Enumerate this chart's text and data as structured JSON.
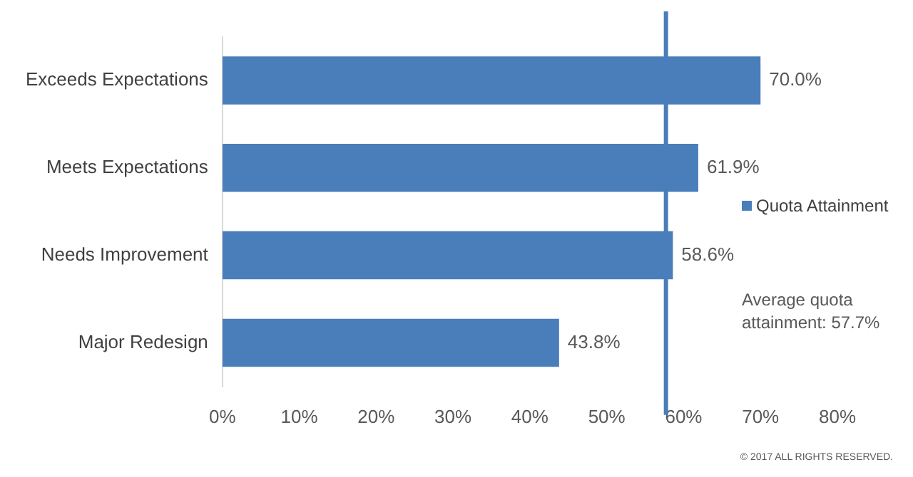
{
  "chart_data": {
    "type": "bar",
    "orientation": "horizontal",
    "categories": [
      "Exceeds Expectations",
      "Meets Expectations",
      "Needs Improvement",
      "Major Redesign"
    ],
    "series": [
      {
        "name": "Quota Attainment",
        "color": "#4a7ebb",
        "values": [
          70.0,
          61.9,
          58.6,
          43.8
        ],
        "value_labels": [
          "70.0%",
          "61.9%",
          "58.6%",
          "43.8%"
        ]
      }
    ],
    "xlim": [
      0,
      80
    ],
    "xticks": [
      {
        "value": 0,
        "label": "0%"
      },
      {
        "value": 10,
        "label": "10%"
      },
      {
        "value": 20,
        "label": "20%"
      },
      {
        "value": 30,
        "label": "30%"
      },
      {
        "value": 40,
        "label": "40%"
      },
      {
        "value": 50,
        "label": "50%"
      },
      {
        "value": 60,
        "label": "60%"
      },
      {
        "value": 70,
        "label": "70%"
      },
      {
        "value": 80,
        "label": "80%"
      }
    ],
    "ref_lines": [
      {
        "axis": "x",
        "value": 57.7,
        "color": "#4a7ebb"
      }
    ],
    "annotations": [
      "Average quota attainment: 57.7%",
      "© 2017 ALL RIGHTS RESERVED."
    ],
    "legend": "right",
    "grid": false
  }
}
